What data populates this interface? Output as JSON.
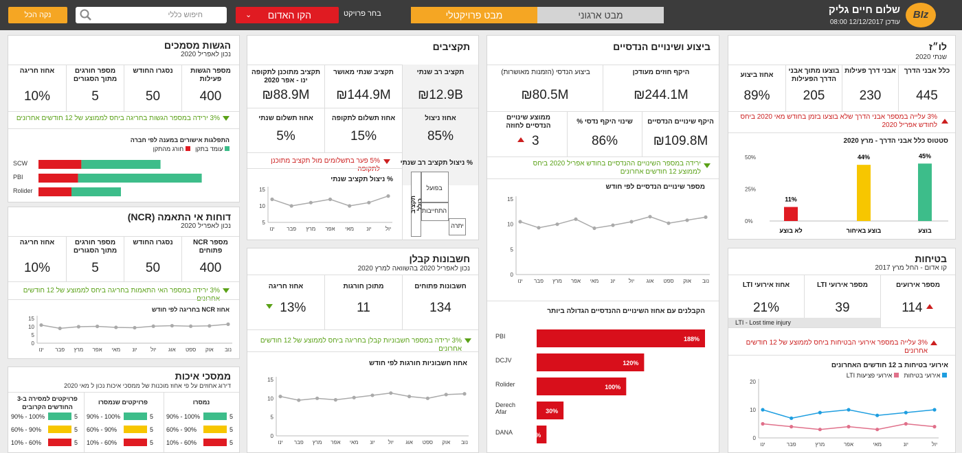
{
  "header": {
    "logo_text": "BIz",
    "greeting": "שלום חיים גליק",
    "updated": "עודכן 12/12/2017 08:00",
    "tab_org": "מבט ארגוני",
    "tab_project": "מבט פרויקטלי",
    "project_label": "בחר פרויקט",
    "project_value": "הקו האדום",
    "search_placeholder": "חיפוש כללי",
    "clear_label": "נקה הכל"
  },
  "schedule": {
    "title": "לו״ז",
    "subtitle": "שנתי 2020",
    "kpis": [
      {
        "label": "כלל אבני הדרך",
        "value": "445"
      },
      {
        "label": "אבני דרך פעילות",
        "value": "230"
      },
      {
        "label": "בוצעו מתוך אבני הדרך הפעילות",
        "value": "205"
      },
      {
        "label": "אחוז ביצוע",
        "value": "89%"
      }
    ],
    "alert": "3% עלייה במספר אבני הדרך שלא בוצעו בזמן בחודש מאי 2020 ביחס לחודש אפריל 2020",
    "chart_title": "סטטוס כלל אבני הדרך - מרץ 2020",
    "chart_data": {
      "type": "bar",
      "title": "סטטוס כלל אבני הדרך - מרץ 2020",
      "categories": [
        "בוצע",
        "בוצע באיחור",
        "לא בוצע"
      ],
      "values": [
        45,
        44,
        11
      ],
      "colors": [
        "#3dbd8a",
        "#f7c600",
        "#e01b22"
      ],
      "ylim": [
        0,
        50
      ],
      "yticks": [
        "0%",
        "25%",
        "50%"
      ],
      "data_labels": [
        "45%",
        "44%",
        "11%"
      ]
    }
  },
  "safety": {
    "title": "בטיחות",
    "subtitle": "קו אדום - החל מרץ 2017",
    "kpis": [
      {
        "label": "מספר אירועים",
        "value": "114"
      },
      {
        "label": "מספר אירועי LTI",
        "value": "39"
      },
      {
        "label": "אחוז אירועי LTI",
        "value": "21%"
      }
    ],
    "lti_note": "LTI - Lost time injury",
    "alert": "3% עלייה במספר אירועי הבטיחות ביחס לממוצע של 12 חודשים אחרונים",
    "chart_title": "אירועי בטיחות ב 12 חודשים האחרונים",
    "legend": [
      "אירועי בטיחות",
      "אירועי פציעות LTI"
    ],
    "chart_data": {
      "type": "line",
      "x": [
        "ינו",
        "פבר",
        "מרץ",
        "אפר",
        "מאי",
        "יונ",
        "יול"
      ],
      "series": [
        {
          "name": "אירועי בטיחות",
          "color": "#1e9ee0",
          "values": [
            10,
            7,
            9,
            10,
            8,
            9,
            10
          ]
        },
        {
          "name": "אירועי פציעות LTI",
          "color": "#e0708a",
          "values": [
            5,
            4,
            3,
            4,
            3,
            5,
            4
          ]
        }
      ],
      "ylim": [
        0,
        20
      ],
      "yticks": [
        "0",
        "10",
        "20"
      ]
    }
  },
  "engineering": {
    "title": "ביצוע ושינויים הנדסיים",
    "kpis_top": [
      {
        "label": "היקף חוזים מעודכן",
        "value": "₪244.1M"
      },
      {
        "label": "ביצוע הנדסי (הזמנות מאושרות)",
        "value": "₪80.5M"
      }
    ],
    "kpis_bottom": [
      {
        "label": "היקף שינויים הנדסיים",
        "value": "₪109.8M"
      },
      {
        "label": "שינוי היקף נדסי %",
        "value": "86%"
      },
      {
        "label": "ממוצע שינויים הנדסיים לחוזה",
        "value": "3"
      }
    ],
    "alert": "ירידה במספר השינויים ההנדסיים בחודש אפריל 2020 ביחס לממוצע 12 חודשים אחרונים",
    "line_title": "מספר שינויים הנדסיים לפי חודש",
    "line_data": {
      "type": "line",
      "x": [
        "ינו",
        "פבר",
        "מרץ",
        "אפר",
        "מאי",
        "יונ",
        "יול",
        "אוג",
        "ספט",
        "אוק",
        "נוב"
      ],
      "series": [
        {
          "name": "שינויים",
          "color": "#aaaaaa",
          "values": [
            10.5,
            9.3,
            10,
            11,
            9.2,
            9.8,
            10.5,
            11.5,
            10.2,
            10.8,
            11.4
          ]
        }
      ],
      "ylim": [
        0,
        15
      ],
      "yticks": [
        "0",
        "5",
        "10",
        "15"
      ]
    },
    "bar_title": "הקבלנים עם אחוז השינויים ההנדסיים הגדולה ביותר",
    "bar_data": {
      "type": "bar",
      "categories": [
        "PBI",
        "DCJV",
        "Rolider",
        "Derech Afar",
        "DANA"
      ],
      "values": [
        188,
        120,
        100,
        30,
        11
      ],
      "labels": [
        "188%",
        "120%",
        "100%",
        "30%",
        "11%"
      ]
    }
  },
  "budgets": {
    "title": "תקציבים",
    "kpis_top": [
      {
        "label": "תקציב רב שנתי",
        "value": "₪12.9B"
      },
      {
        "label": "תקציב שנתי מאושר",
        "value": "₪144.9M"
      },
      {
        "label": "תקציב מתוכנן לתקופה ינו - אפר 2020",
        "value": "₪88.9M"
      }
    ],
    "kpis_bottom": [
      {
        "label": "אחוז ניצול",
        "value": "85%"
      },
      {
        "label": "אחוז תשלום לתקופה",
        "value": "15%"
      },
      {
        "label": "אחוז תשלום שנתי",
        "value": "5%"
      }
    ],
    "alert": "5% פער בתשלומים מול תקציב מתוכנן לתקופה",
    "line_title": "% ניצול תקציב שנתי",
    "line_data": {
      "type": "line",
      "x": [
        "ינו",
        "פבר",
        "מרץ",
        "אפר",
        "מאי",
        "יונ",
        "יול"
      ],
      "series": [
        {
          "name": "ניצול",
          "color": "#aaaaaa",
          "values": [
            12,
            10,
            11,
            12,
            10,
            11,
            13
          ]
        }
      ],
      "ylim": [
        5,
        15
      ],
      "yticks": [
        "5",
        "10",
        "15"
      ]
    },
    "side_title": "% ניצול תקציב רב שנתי",
    "side_axis": "תקציב כולל",
    "side_items": [
      "בפועל",
      "התחייבות",
      "יתרה"
    ]
  },
  "contractor": {
    "title": "חשבונות קבלן",
    "subtitle": "נכון לאפריל 2020 בהשוואה למרץ 2020",
    "kpis": [
      {
        "label": "חשבונות פתוחים",
        "value": "134"
      },
      {
        "label": "מתוכן חורגות",
        "value": "11"
      },
      {
        "label": "אחוז חריגה",
        "value": "13%"
      }
    ],
    "alert": "3% ירידה במספר חשבוניות קבלן בחריגה ביחס לממוצע של 12 חודשים אחרונים",
    "line_title": "אחוז חשבוניות חורגות לפי חודש",
    "line_data": {
      "type": "line",
      "x": [
        "ינו",
        "פבר",
        "מרץ",
        "אפר",
        "מאי",
        "יונ",
        "יול",
        "אוג",
        "ספט",
        "אוק",
        "נוב"
      ],
      "series": [
        {
          "name": "חורגות",
          "color": "#aaaaaa",
          "values": [
            10.5,
            9.5,
            10,
            9.6,
            10.2,
            10.8,
            11.4,
            10.5,
            10,
            11,
            11.2
          ]
        }
      ],
      "ylim": [
        0,
        15
      ],
      "yticks": [
        "0",
        "5",
        "10",
        "15"
      ]
    }
  },
  "submissions": {
    "title": "הגשות מסמכים",
    "subtitle": "נכון לאפריל 2020",
    "kpis": [
      {
        "label": "מספר הגשות פעילות",
        "value": "400"
      },
      {
        "label": "נסגרו החודש",
        "value": "50"
      },
      {
        "label": "מספר חורגים מתוך הסגורים",
        "value": "5"
      },
      {
        "label": "אחוז חריגה",
        "value": "10%"
      }
    ],
    "alert": "3% ירידה במספר הגשות בחריגה ביחס לממוצע של 12 חודשים אחרונים",
    "chart_title": "התפלגות אישורים במענה לפי חברה",
    "legend": [
      "עומד בתקן",
      "חורג מהתקן"
    ],
    "chart_data": {
      "type": "bar",
      "stacked": true,
      "categories": [
        "SCW",
        "PBI",
        "Rolider"
      ],
      "series": [
        {
          "name": "חורג מהתקן",
          "color": "#e01b22",
          "values": [
            26,
            24,
            20
          ]
        },
        {
          "name": "עומד בתקן",
          "color": "#3dbd8a",
          "values": [
            48,
            75,
            30
          ]
        }
      ]
    }
  },
  "ncr": {
    "title": "דוחות אי התאמה (NCR)",
    "subtitle": "נכון לאפריל 2020",
    "kpis": [
      {
        "label": "מספר NCR פתוחים",
        "value": "400"
      },
      {
        "label": "נסגרו החודש",
        "value": "50"
      },
      {
        "label": "מספר חורגים מתוך הסגורים",
        "value": "5"
      },
      {
        "label": "אחוז חריגה",
        "value": "10%"
      }
    ],
    "alert": "3% ירידה במספר האי התאמות בחריגה ביחס לממוצע של 12 חודשים אחרונים",
    "chart_title": "אחוז NCR בחריגה לפי חודש",
    "chart_data": {
      "type": "line",
      "x": [
        "ינו",
        "פבר",
        "מרץ",
        "אפר",
        "מאי",
        "יונ",
        "יול",
        "אוג",
        "ספט",
        "אוק",
        "נוב"
      ],
      "series": [
        {
          "name": "NCR",
          "color": "#aaaaaa",
          "values": [
            11,
            9,
            10,
            10.2,
            9.6,
            9.4,
            10.3,
            10.6,
            10.3,
            10.5,
            11.5
          ]
        }
      ],
      "ylim": [
        0,
        15
      ],
      "yticks": [
        "0",
        "5",
        "10",
        "15"
      ]
    }
  },
  "quality": {
    "title": "ממסכי איכות",
    "subtitle": "דירוג אחוזים על פי אחוז מוכנות של ממסכי איכות נכון ל מאי 2020",
    "cols": [
      {
        "label": "נמסרו",
        "rows": [
          {
            "range": "90% - 100%",
            "count": "5"
          },
          {
            "range": "60% - 90%",
            "count": "5"
          },
          {
            "range": "10% - 60%",
            "count": "5"
          }
        ]
      },
      {
        "label": "פרויקטים שנמסרו",
        "rows": [
          {
            "range": "90% - 100%",
            "count": "5"
          },
          {
            "range": "60% - 90%",
            "count": "5"
          },
          {
            "range": "10% - 60%",
            "count": "5"
          }
        ]
      },
      {
        "label": "פרויקטים למסירה ב-3 החודשים הקרובים",
        "rows": [
          {
            "range": "90% - 100%",
            "count": "5"
          },
          {
            "range": "60% - 90%",
            "count": "5"
          },
          {
            "range": "10% - 60%",
            "count": "5"
          }
        ]
      }
    ],
    "colors": [
      "#3dbd8a",
      "#f7c600",
      "#e01b22"
    ]
  }
}
